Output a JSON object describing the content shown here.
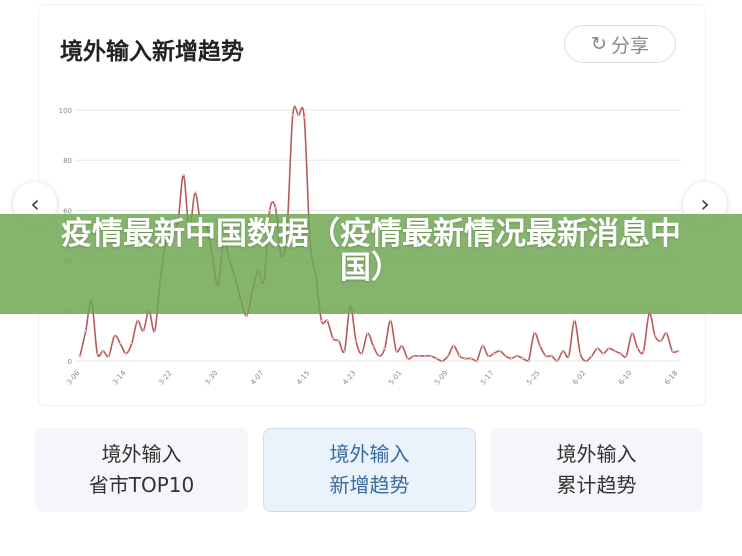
{
  "header": {
    "title": "境外输入新增趋势",
    "share_label": "分享",
    "share_icon": "share-arrow-icon"
  },
  "nav": {
    "prev_icon": "chevron-left-icon",
    "next_icon": "chevron-right-icon",
    "prev_glyph": "‹",
    "next_glyph": "›"
  },
  "banner": {
    "text": "疫情最新中国数据（疫情最新情况最新消息中国）"
  },
  "tabs": [
    {
      "line1": "境外输入",
      "line2": "省市TOP10",
      "active": false
    },
    {
      "line1": "境外输入",
      "line2": "新增趋势",
      "active": true
    },
    {
      "line1": "境外输入",
      "line2": "累计趋势",
      "active": false
    }
  ],
  "chart_data": {
    "type": "line",
    "title": "",
    "xlabel": "",
    "ylabel": "",
    "ylim": [
      0,
      100
    ],
    "yticks": [
      0,
      20,
      40,
      60,
      80,
      100
    ],
    "grid": true,
    "line_color": "#b85a5c",
    "xtick_labels": [
      "3-06",
      "3-14",
      "3-22",
      "3-30",
      "4-07",
      "4-15",
      "4-23",
      "5-01",
      "5-09",
      "5-17",
      "5-25",
      "6-02",
      "6-10",
      "6-18"
    ],
    "x": [
      "3-06",
      "3-07",
      "3-08",
      "3-09",
      "3-10",
      "3-11",
      "3-12",
      "3-13",
      "3-14",
      "3-15",
      "3-16",
      "3-17",
      "3-18",
      "3-19",
      "3-20",
      "3-21",
      "3-22",
      "3-23",
      "3-24",
      "3-25",
      "3-26",
      "3-27",
      "3-28",
      "3-29",
      "3-30",
      "3-31",
      "4-01",
      "4-02",
      "4-03",
      "4-04",
      "4-05",
      "4-06",
      "4-07",
      "4-08",
      "4-09",
      "4-10",
      "4-11",
      "4-12",
      "4-13",
      "4-14",
      "4-15",
      "4-16",
      "4-17",
      "4-18",
      "4-19",
      "4-20",
      "4-21",
      "4-22",
      "4-23",
      "4-24",
      "4-25",
      "4-26",
      "4-27",
      "4-28",
      "4-29",
      "4-30",
      "5-01",
      "5-02",
      "5-03",
      "5-04",
      "5-05",
      "5-06",
      "5-07",
      "5-08",
      "5-09",
      "5-10",
      "5-11",
      "5-12",
      "5-13",
      "5-14",
      "5-15",
      "5-16",
      "5-17",
      "5-18",
      "5-19",
      "5-20",
      "5-21",
      "5-22",
      "5-23",
      "5-24",
      "5-25",
      "5-26",
      "5-27",
      "5-28",
      "5-29",
      "5-30",
      "5-31",
      "6-01",
      "6-02",
      "6-03",
      "6-04",
      "6-05",
      "6-06",
      "6-07",
      "6-08",
      "6-09",
      "6-10",
      "6-11",
      "6-12",
      "6-13",
      "6-14",
      "6-15",
      "6-16",
      "6-17",
      "6-18"
    ],
    "values": [
      2,
      12,
      24,
      3,
      4,
      2,
      10,
      7,
      3,
      7,
      16,
      12,
      20,
      12,
      33,
      48,
      52,
      55,
      74,
      52,
      67,
      55,
      54,
      42,
      30,
      48,
      40,
      33,
      24,
      18,
      28,
      36,
      32,
      60,
      61,
      42,
      52,
      98,
      98,
      97,
      48,
      34,
      16,
      16,
      9,
      8,
      4,
      22,
      8,
      3,
      11,
      6,
      2,
      5,
      16,
      4,
      6,
      1,
      2,
      2,
      2,
      2,
      1,
      0,
      2,
      6,
      2,
      1,
      1,
      0,
      6,
      2,
      3,
      4,
      2,
      1,
      2,
      1,
      0,
      11,
      6,
      2,
      2,
      0,
      4,
      2,
      16,
      3,
      0,
      2,
      5,
      3,
      5,
      4,
      3,
      2,
      11,
      5,
      4,
      19,
      10,
      8,
      11,
      4,
      4
    ]
  }
}
